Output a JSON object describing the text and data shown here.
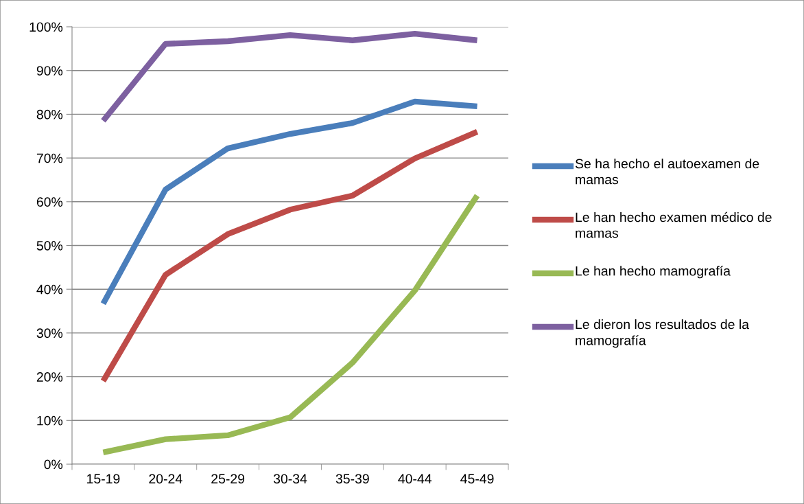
{
  "chart_data": {
    "type": "line",
    "categories": [
      "15-19",
      "20-24",
      "25-29",
      "30-34",
      "35-39",
      "40-44",
      "45-49"
    ],
    "series": [
      {
        "name": "Se ha hecho el autoexamen de mamas",
        "color": "#4a7ebb",
        "values": [
          36.7,
          62.8,
          72.2,
          75.5,
          78.0,
          82.9,
          81.8
        ]
      },
      {
        "name": "Le han hecho examen médico de mamas",
        "color": "#be4b48",
        "values": [
          19.0,
          43.3,
          52.6,
          58.2,
          61.4,
          69.9,
          76.0
        ]
      },
      {
        "name": "Le han hecho mamografía",
        "color": "#98b954",
        "values": [
          2.7,
          5.7,
          6.6,
          10.7,
          23.2,
          39.7,
          61.4
        ]
      },
      {
        "name": "Le dieron los resultados de la mamografía",
        "color": "#7d60a0",
        "values": [
          78.5,
          96.1,
          96.7,
          98.1,
          96.9,
          98.4,
          96.9
        ]
      }
    ],
    "ylim": [
      0,
      100
    ],
    "yticks": [
      {
        "value": 0,
        "label": "0%"
      },
      {
        "value": 10,
        "label": "10%"
      },
      {
        "value": 20,
        "label": "20%"
      },
      {
        "value": 30,
        "label": "30%"
      },
      {
        "value": 40,
        "label": "40%"
      },
      {
        "value": 50,
        "label": "50%"
      },
      {
        "value": 60,
        "label": "60%"
      },
      {
        "value": 70,
        "label": "70%"
      },
      {
        "value": 80,
        "label": "80%"
      },
      {
        "value": 90,
        "label": "90%"
      },
      {
        "value": 100,
        "label": "100%"
      }
    ],
    "grid": "y",
    "legend": "right",
    "marker": "none",
    "line_style": "solid"
  }
}
